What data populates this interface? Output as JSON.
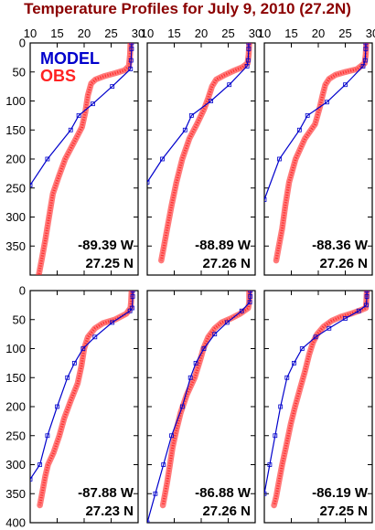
{
  "chart_data": {
    "type": "line",
    "title": "Temperature Profiles for July 9, 2010 (27.2N)",
    "xlabel": "",
    "ylabel": "",
    "xlim": [
      10,
      30
    ],
    "ylim": [
      400,
      0
    ],
    "xticks": [
      "10",
      "15",
      "20",
      "25",
      "30"
    ],
    "yticks": [
      "0",
      "50",
      "100",
      "150",
      "200",
      "250",
      "300",
      "350",
      "400"
    ],
    "legend": {
      "position": "top-left",
      "entries": [
        {
          "name": "MODEL",
          "color": "#0000cc"
        },
        {
          "name": "OBS",
          "color": "#ff2222"
        }
      ]
    },
    "panels": [
      {
        "lon": "-89.39 W",
        "lat": "27.25 N",
        "series": [
          {
            "name": "MODEL",
            "color": "#0000cc",
            "points": [
              [
                28.8,
                0
              ],
              [
                28.8,
                10
              ],
              [
                28.7,
                30
              ],
              [
                28.6,
                45
              ],
              [
                25.2,
                75
              ],
              [
                21.6,
                105
              ],
              [
                19.0,
                125
              ],
              [
                17.5,
                150
              ],
              [
                13.2,
                200
              ],
              [
                10.0,
                245
              ]
            ]
          },
          {
            "name": "OBS",
            "color": "#ff2222",
            "points": [
              [
                28.6,
                0
              ],
              [
                28.5,
                20
              ],
              [
                28.3,
                40
              ],
              [
                27.5,
                47
              ],
              [
                25.8,
                52
              ],
              [
                23.8,
                57
              ],
              [
                22.1,
                63
              ],
              [
                21.3,
                70
              ],
              [
                20.7,
                90
              ],
              [
                20.2,
                120
              ],
              [
                19.6,
                145
              ],
              [
                18.2,
                170
              ],
              [
                16.5,
                200
              ],
              [
                15.3,
                230
              ],
              [
                14.2,
                260
              ],
              [
                13.5,
                300
              ],
              [
                12.8,
                340
              ],
              [
                12.2,
                370
              ],
              [
                11.6,
                400
              ]
            ]
          }
        ]
      },
      {
        "lon": "-88.89 W",
        "lat": "27.26 N",
        "series": [
          {
            "name": "MODEL",
            "color": "#0000cc",
            "points": [
              [
                28.8,
                0
              ],
              [
                28.8,
                10
              ],
              [
                28.7,
                30
              ],
              [
                28.5,
                40
              ],
              [
                25.2,
                72
              ],
              [
                21.8,
                100
              ],
              [
                18.2,
                125
              ],
              [
                17.0,
                150
              ],
              [
                12.8,
                200
              ],
              [
                10.0,
                240
              ]
            ]
          },
          {
            "name": "OBS",
            "color": "#ff2222",
            "points": [
              [
                28.9,
                0
              ],
              [
                28.8,
                20
              ],
              [
                28.6,
                35
              ],
              [
                27.6,
                42
              ],
              [
                26.0,
                48
              ],
              [
                24.4,
                55
              ],
              [
                22.8,
                63
              ],
              [
                22.0,
                75
              ],
              [
                21.3,
                95
              ],
              [
                20.5,
                115
              ],
              [
                19.2,
                140
              ],
              [
                17.8,
                165
              ],
              [
                16.5,
                200
              ],
              [
                15.4,
                240
              ],
              [
                14.5,
                280
              ],
              [
                13.7,
                320
              ],
              [
                13.1,
                350
              ],
              [
                12.6,
                375
              ]
            ]
          }
        ]
      },
      {
        "lon": "-88.36 W",
        "lat": "27.26 N",
        "series": [
          {
            "name": "MODEL",
            "color": "#0000cc",
            "points": [
              [
                28.8,
                0
              ],
              [
                28.8,
                10
              ],
              [
                28.7,
                30
              ],
              [
                28.3,
                40
              ],
              [
                25.0,
                72
              ],
              [
                21.6,
                102
              ],
              [
                18.0,
                125
              ],
              [
                16.5,
                150
              ],
              [
                12.8,
                200
              ],
              [
                10.0,
                270
              ]
            ]
          },
          {
            "name": "OBS",
            "color": "#ff2222",
            "points": [
              [
                28.9,
                0
              ],
              [
                28.8,
                20
              ],
              [
                28.6,
                35
              ],
              [
                27.2,
                45
              ],
              [
                25.0,
                50
              ],
              [
                23.2,
                55
              ],
              [
                22.0,
                62
              ],
              [
                21.3,
                72
              ],
              [
                20.8,
                90
              ],
              [
                20.3,
                110
              ],
              [
                19.4,
                140
              ],
              [
                17.5,
                165
              ],
              [
                15.8,
                200
              ],
              [
                14.6,
                240
              ],
              [
                13.9,
                280
              ],
              [
                13.3,
                320
              ],
              [
                12.7,
                350
              ],
              [
                12.2,
                375
              ]
            ]
          }
        ]
      },
      {
        "lon": "-87.88 W",
        "lat": "27.23 N",
        "series": [
          {
            "name": "MODEL",
            "color": "#0000cc",
            "points": [
              [
                29.0,
                0
              ],
              [
                29.0,
                10
              ],
              [
                28.9,
                30
              ],
              [
                28.5,
                35
              ],
              [
                25.2,
                55
              ],
              [
                22.0,
                80
              ],
              [
                19.8,
                100
              ],
              [
                18.2,
                125
              ],
              [
                16.9,
                150
              ],
              [
                15.0,
                200
              ],
              [
                13.2,
                250
              ],
              [
                11.8,
                300
              ],
              [
                10.0,
                325
              ]
            ]
          },
          {
            "name": "OBS",
            "color": "#ff2222",
            "points": [
              [
                28.8,
                0
              ],
              [
                28.7,
                20
              ],
              [
                28.6,
                30
              ],
              [
                27.8,
                40
              ],
              [
                25.7,
                50
              ],
              [
                23.5,
                56
              ],
              [
                22.0,
                65
              ],
              [
                20.7,
                80
              ],
              [
                20.0,
                100
              ],
              [
                19.5,
                130
              ],
              [
                18.8,
                160
              ],
              [
                17.5,
                190
              ],
              [
                16.3,
                220
              ],
              [
                15.4,
                250
              ],
              [
                14.3,
                280
              ],
              [
                13.3,
                300
              ],
              [
                12.8,
                320
              ],
              [
                12.3,
                345
              ],
              [
                11.8,
                370
              ]
            ]
          }
        ]
      },
      {
        "lon": "-86.88 W",
        "lat": "27.26 N",
        "series": [
          {
            "name": "MODEL",
            "color": "#0000cc",
            "points": [
              [
                29.1,
                0
              ],
              [
                29.1,
                10
              ],
              [
                29.0,
                20
              ],
              [
                27.5,
                35
              ],
              [
                24.8,
                55
              ],
              [
                22.5,
                75
              ],
              [
                20.5,
                100
              ],
              [
                19.0,
                125
              ],
              [
                18.0,
                150
              ],
              [
                16.5,
                200
              ],
              [
                14.5,
                250
              ],
              [
                13.0,
                300
              ],
              [
                11.5,
                350
              ],
              [
                10.0,
                400
              ]
            ]
          },
          {
            "name": "OBS",
            "color": "#ff2222",
            "points": [
              [
                28.9,
                0
              ],
              [
                28.9,
                20
              ],
              [
                28.7,
                30
              ],
              [
                27.2,
                40
              ],
              [
                25.5,
                48
              ],
              [
                23.8,
                55
              ],
              [
                22.5,
                65
              ],
              [
                21.3,
                80
              ],
              [
                20.4,
                100
              ],
              [
                19.8,
                120
              ],
              [
                18.8,
                150
              ],
              [
                17.3,
                180
              ],
              [
                16.2,
                210
              ],
              [
                15.4,
                240
              ],
              [
                14.7,
                270
              ],
              [
                14.2,
                300
              ],
              [
                13.7,
                330
              ],
              [
                13.3,
                350
              ],
              [
                12.9,
                370
              ]
            ]
          }
        ]
      },
      {
        "lon": "-86.19 W",
        "lat": "27.25 N",
        "series": [
          {
            "name": "MODEL",
            "color": "#0000cc",
            "points": [
              [
                29.0,
                0
              ],
              [
                29.0,
                10
              ],
              [
                28.9,
                25
              ],
              [
                27.5,
                35
              ],
              [
                25.0,
                48
              ],
              [
                22.0,
                65
              ],
              [
                19.5,
                80
              ],
              [
                17.0,
                100
              ],
              [
                15.5,
                125
              ],
              [
                14.2,
                150
              ],
              [
                13.0,
                200
              ],
              [
                12.0,
                250
              ],
              [
                11.0,
                300
              ],
              [
                10.0,
                350
              ]
            ]
          },
          {
            "name": "OBS",
            "color": "#ff2222",
            "points": [
              [
                29.0,
                0
              ],
              [
                28.9,
                20
              ],
              [
                28.8,
                30
              ],
              [
                27.5,
                35
              ],
              [
                26.0,
                40
              ],
              [
                24.2,
                45
              ],
              [
                22.5,
                52
              ],
              [
                21.0,
                62
              ],
              [
                19.8,
                75
              ],
              [
                19.0,
                90
              ],
              [
                18.3,
                110
              ],
              [
                17.5,
                140
              ],
              [
                16.6,
                170
              ],
              [
                15.7,
                200
              ],
              [
                14.9,
                230
              ],
              [
                14.0,
                270
              ],
              [
                13.3,
                300
              ],
              [
                12.7,
                330
              ],
              [
                12.2,
                355
              ],
              [
                11.8,
                370
              ]
            ]
          }
        ]
      }
    ]
  }
}
